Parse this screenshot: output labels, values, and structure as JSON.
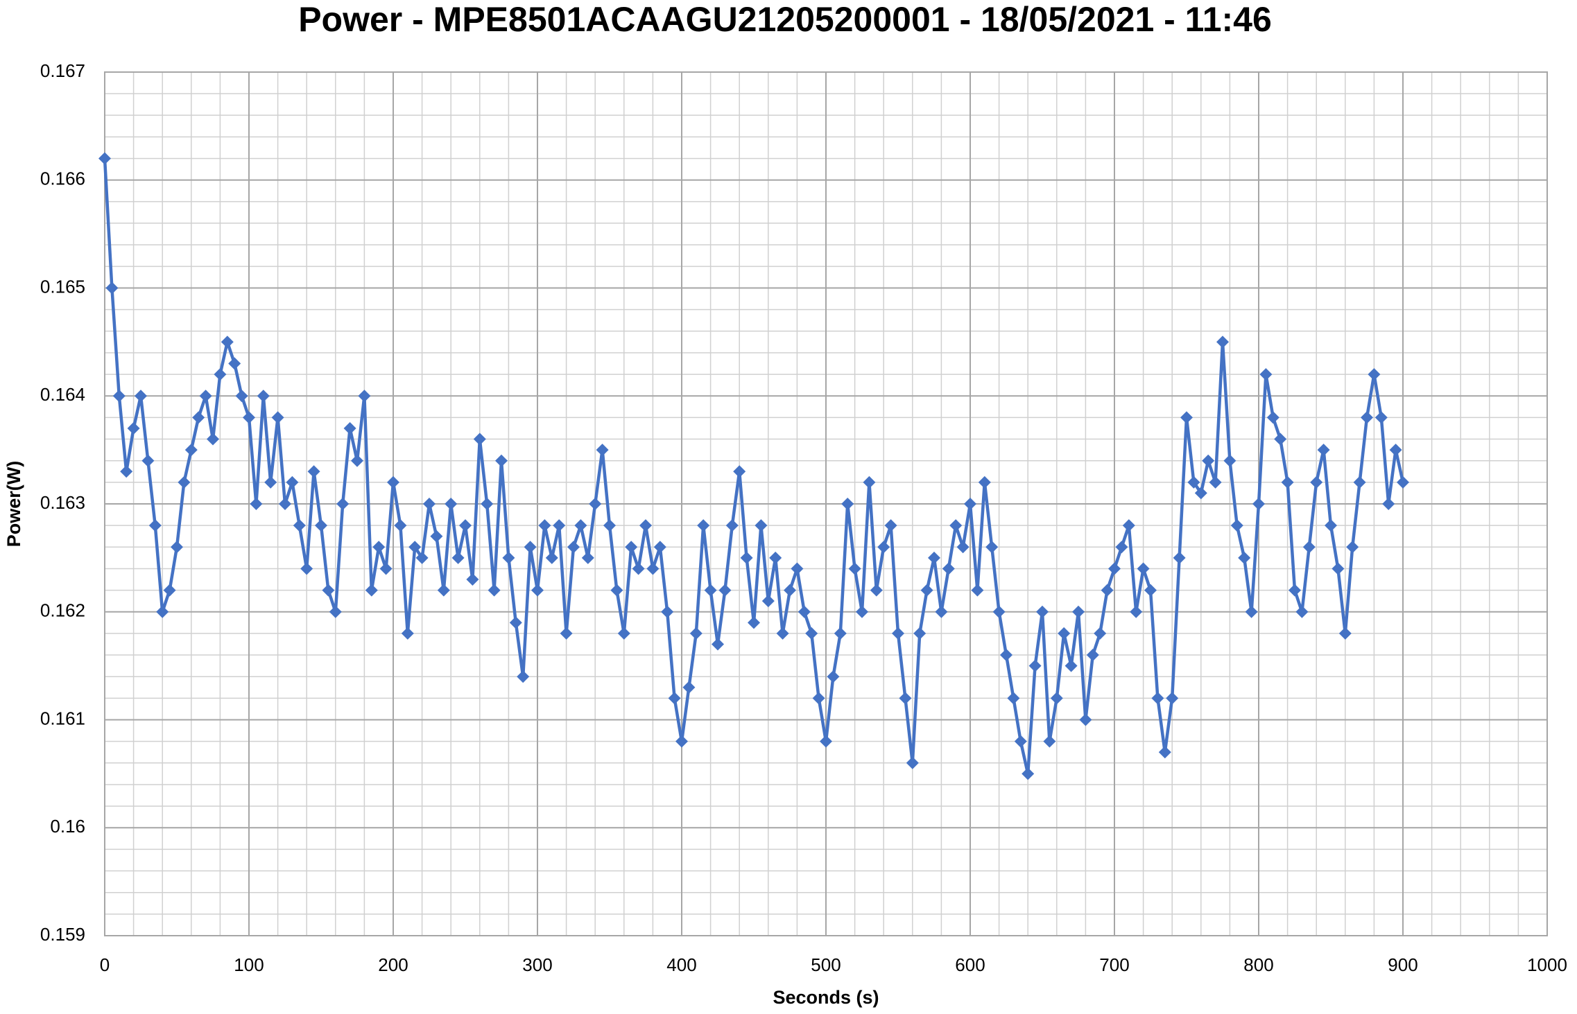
{
  "chart_data": {
    "type": "line",
    "title": "Power - MPE8501ACAAGU21205200001 - 18/05/2021 - 11:46",
    "xlabel": "Seconds (s)",
    "ylabel": "Power(W)",
    "xlim": [
      0,
      1000
    ],
    "xticks": [
      0,
      100,
      200,
      300,
      400,
      500,
      600,
      700,
      800,
      900,
      1000
    ],
    "ylim": [
      0.159,
      0.167
    ],
    "yticks": [
      0.159,
      0.16,
      0.161,
      0.162,
      0.163,
      0.164,
      0.165,
      0.166,
      0.167
    ],
    "grid": true,
    "minor_grid": true,
    "minor_divisions": 5,
    "marker": "diamond",
    "x": [
      0,
      5,
      10,
      15,
      20,
      25,
      30,
      35,
      40,
      45,
      50,
      55,
      60,
      65,
      70,
      75,
      80,
      85,
      90,
      95,
      100,
      105,
      110,
      115,
      120,
      125,
      130,
      135,
      140,
      145,
      150,
      155,
      160,
      165,
      170,
      175,
      180,
      185,
      190,
      195,
      200,
      205,
      210,
      215,
      220,
      225,
      230,
      235,
      240,
      245,
      250,
      255,
      260,
      265,
      270,
      275,
      280,
      285,
      290,
      295,
      300,
      305,
      310,
      315,
      320,
      325,
      330,
      335,
      340,
      345,
      350,
      355,
      360,
      365,
      370,
      375,
      380,
      385,
      390,
      395,
      400,
      405,
      410,
      415,
      420,
      425,
      430,
      435,
      440,
      445,
      450,
      455,
      460,
      465,
      470,
      475,
      480,
      485,
      490,
      495,
      500,
      505,
      510,
      515,
      520,
      525,
      530,
      535,
      540,
      545,
      550,
      555,
      560,
      565,
      570,
      575,
      580,
      585,
      590,
      595,
      600,
      605,
      610,
      615,
      620,
      625,
      630,
      635,
      640,
      645,
      650,
      655,
      660,
      665,
      670,
      675,
      680,
      685,
      690,
      695,
      700,
      705,
      710,
      715,
      720,
      725,
      730,
      735,
      740,
      745,
      750,
      755,
      760,
      765,
      770,
      775,
      780,
      785,
      790,
      795,
      800,
      805,
      810,
      815,
      820,
      825,
      830,
      835,
      840,
      845,
      850,
      855,
      860,
      865,
      870,
      875,
      880,
      885,
      890,
      895,
      900
    ],
    "series": [
      {
        "name": "Power",
        "color": "#4472c4",
        "values": [
          0.1662,
          0.165,
          0.164,
          0.1633,
          0.1637,
          0.164,
          0.1634,
          0.1628,
          0.162,
          0.1622,
          0.1626,
          0.1632,
          0.1635,
          0.1638,
          0.164,
          0.1636,
          0.1642,
          0.1645,
          0.1643,
          0.164,
          0.1638,
          0.163,
          0.164,
          0.1632,
          0.1638,
          0.163,
          0.1632,
          0.1628,
          0.1624,
          0.1633,
          0.1628,
          0.1622,
          0.162,
          0.163,
          0.1637,
          0.1634,
          0.164,
          0.1622,
          0.1626,
          0.1624,
          0.1632,
          0.1628,
          0.1618,
          0.1626,
          0.1625,
          0.163,
          0.1627,
          0.1622,
          0.163,
          0.1625,
          0.1628,
          0.1623,
          0.1636,
          0.163,
          0.1622,
          0.1634,
          0.1625,
          0.1619,
          0.1614,
          0.1626,
          0.1622,
          0.1628,
          0.1625,
          0.1628,
          0.1618,
          0.1626,
          0.1628,
          0.1625,
          0.163,
          0.1635,
          0.1628,
          0.1622,
          0.1618,
          0.1626,
          0.1624,
          0.1628,
          0.1624,
          0.1626,
          0.162,
          0.1612,
          0.1608,
          0.1613,
          0.1618,
          0.1628,
          0.1622,
          0.1617,
          0.1622,
          0.1628,
          0.1633,
          0.1625,
          0.1619,
          0.1628,
          0.1621,
          0.1625,
          0.1618,
          0.1622,
          0.1624,
          0.162,
          0.1618,
          0.1612,
          0.1608,
          0.1614,
          0.1618,
          0.163,
          0.1624,
          0.162,
          0.1632,
          0.1622,
          0.1626,
          0.1628,
          0.1618,
          0.1612,
          0.1606,
          0.1618,
          0.1622,
          0.1625,
          0.162,
          0.1624,
          0.1628,
          0.1626,
          0.163,
          0.1622,
          0.1632,
          0.1626,
          0.162,
          0.1616,
          0.1612,
          0.1608,
          0.1605,
          0.1615,
          0.162,
          0.1608,
          0.1612,
          0.1618,
          0.1615,
          0.162,
          0.161,
          0.1616,
          0.1618,
          0.1622,
          0.1624,
          0.1626,
          0.1628,
          0.162,
          0.1624,
          0.1622,
          0.1612,
          0.1607,
          0.1612,
          0.1625,
          0.1638,
          0.1632,
          0.1631,
          0.1634,
          0.1632,
          0.1645,
          0.1634,
          0.1628,
          0.1625,
          0.162,
          0.163,
          0.1642,
          0.1638,
          0.1636,
          0.1632,
          0.1622,
          0.162,
          0.1626,
          0.1632,
          0.1635,
          0.1628,
          0.1624,
          0.1618,
          0.1626,
          0.1632,
          0.1638,
          0.1642,
          0.1638,
          0.163,
          0.1635,
          0.1632
        ]
      }
    ]
  }
}
